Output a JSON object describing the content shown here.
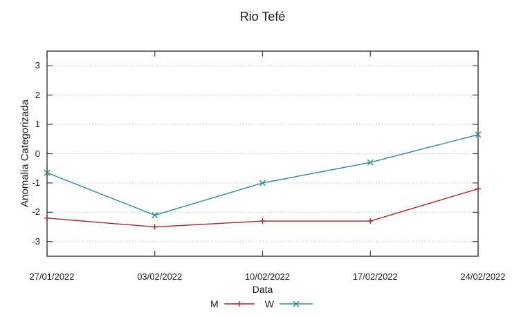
{
  "chart_data": {
    "type": "line",
    "title": "Rio Tefé",
    "xlabel": "Data",
    "ylabel": "Anomalia Categorizada",
    "categories": [
      "27/01/2022",
      "03/02/2022",
      "10/02/2022",
      "17/02/2022",
      "24/02/2022"
    ],
    "series": [
      {
        "name": "M",
        "color": "#b22222",
        "marker": "plus",
        "values": [
          -2.2,
          -2.5,
          -2.3,
          -2.3,
          -1.2
        ]
      },
      {
        "name": "W",
        "color": "#2e8b8b",
        "marker": "cross",
        "values": [
          -0.65,
          -2.1,
          -1.0,
          -0.3,
          0.65
        ]
      }
    ],
    "ylim": [
      -3.5,
      3.5
    ],
    "yticks": [
      3,
      2,
      1,
      0,
      -1,
      -2,
      -3
    ],
    "grid": "horizontal-dotted",
    "legend_position": "bottom-center",
    "colors": {
      "grid": "#b8b8b8",
      "border": "#404040",
      "background": "#ffffff",
      "text": "#1a1a1a"
    }
  }
}
